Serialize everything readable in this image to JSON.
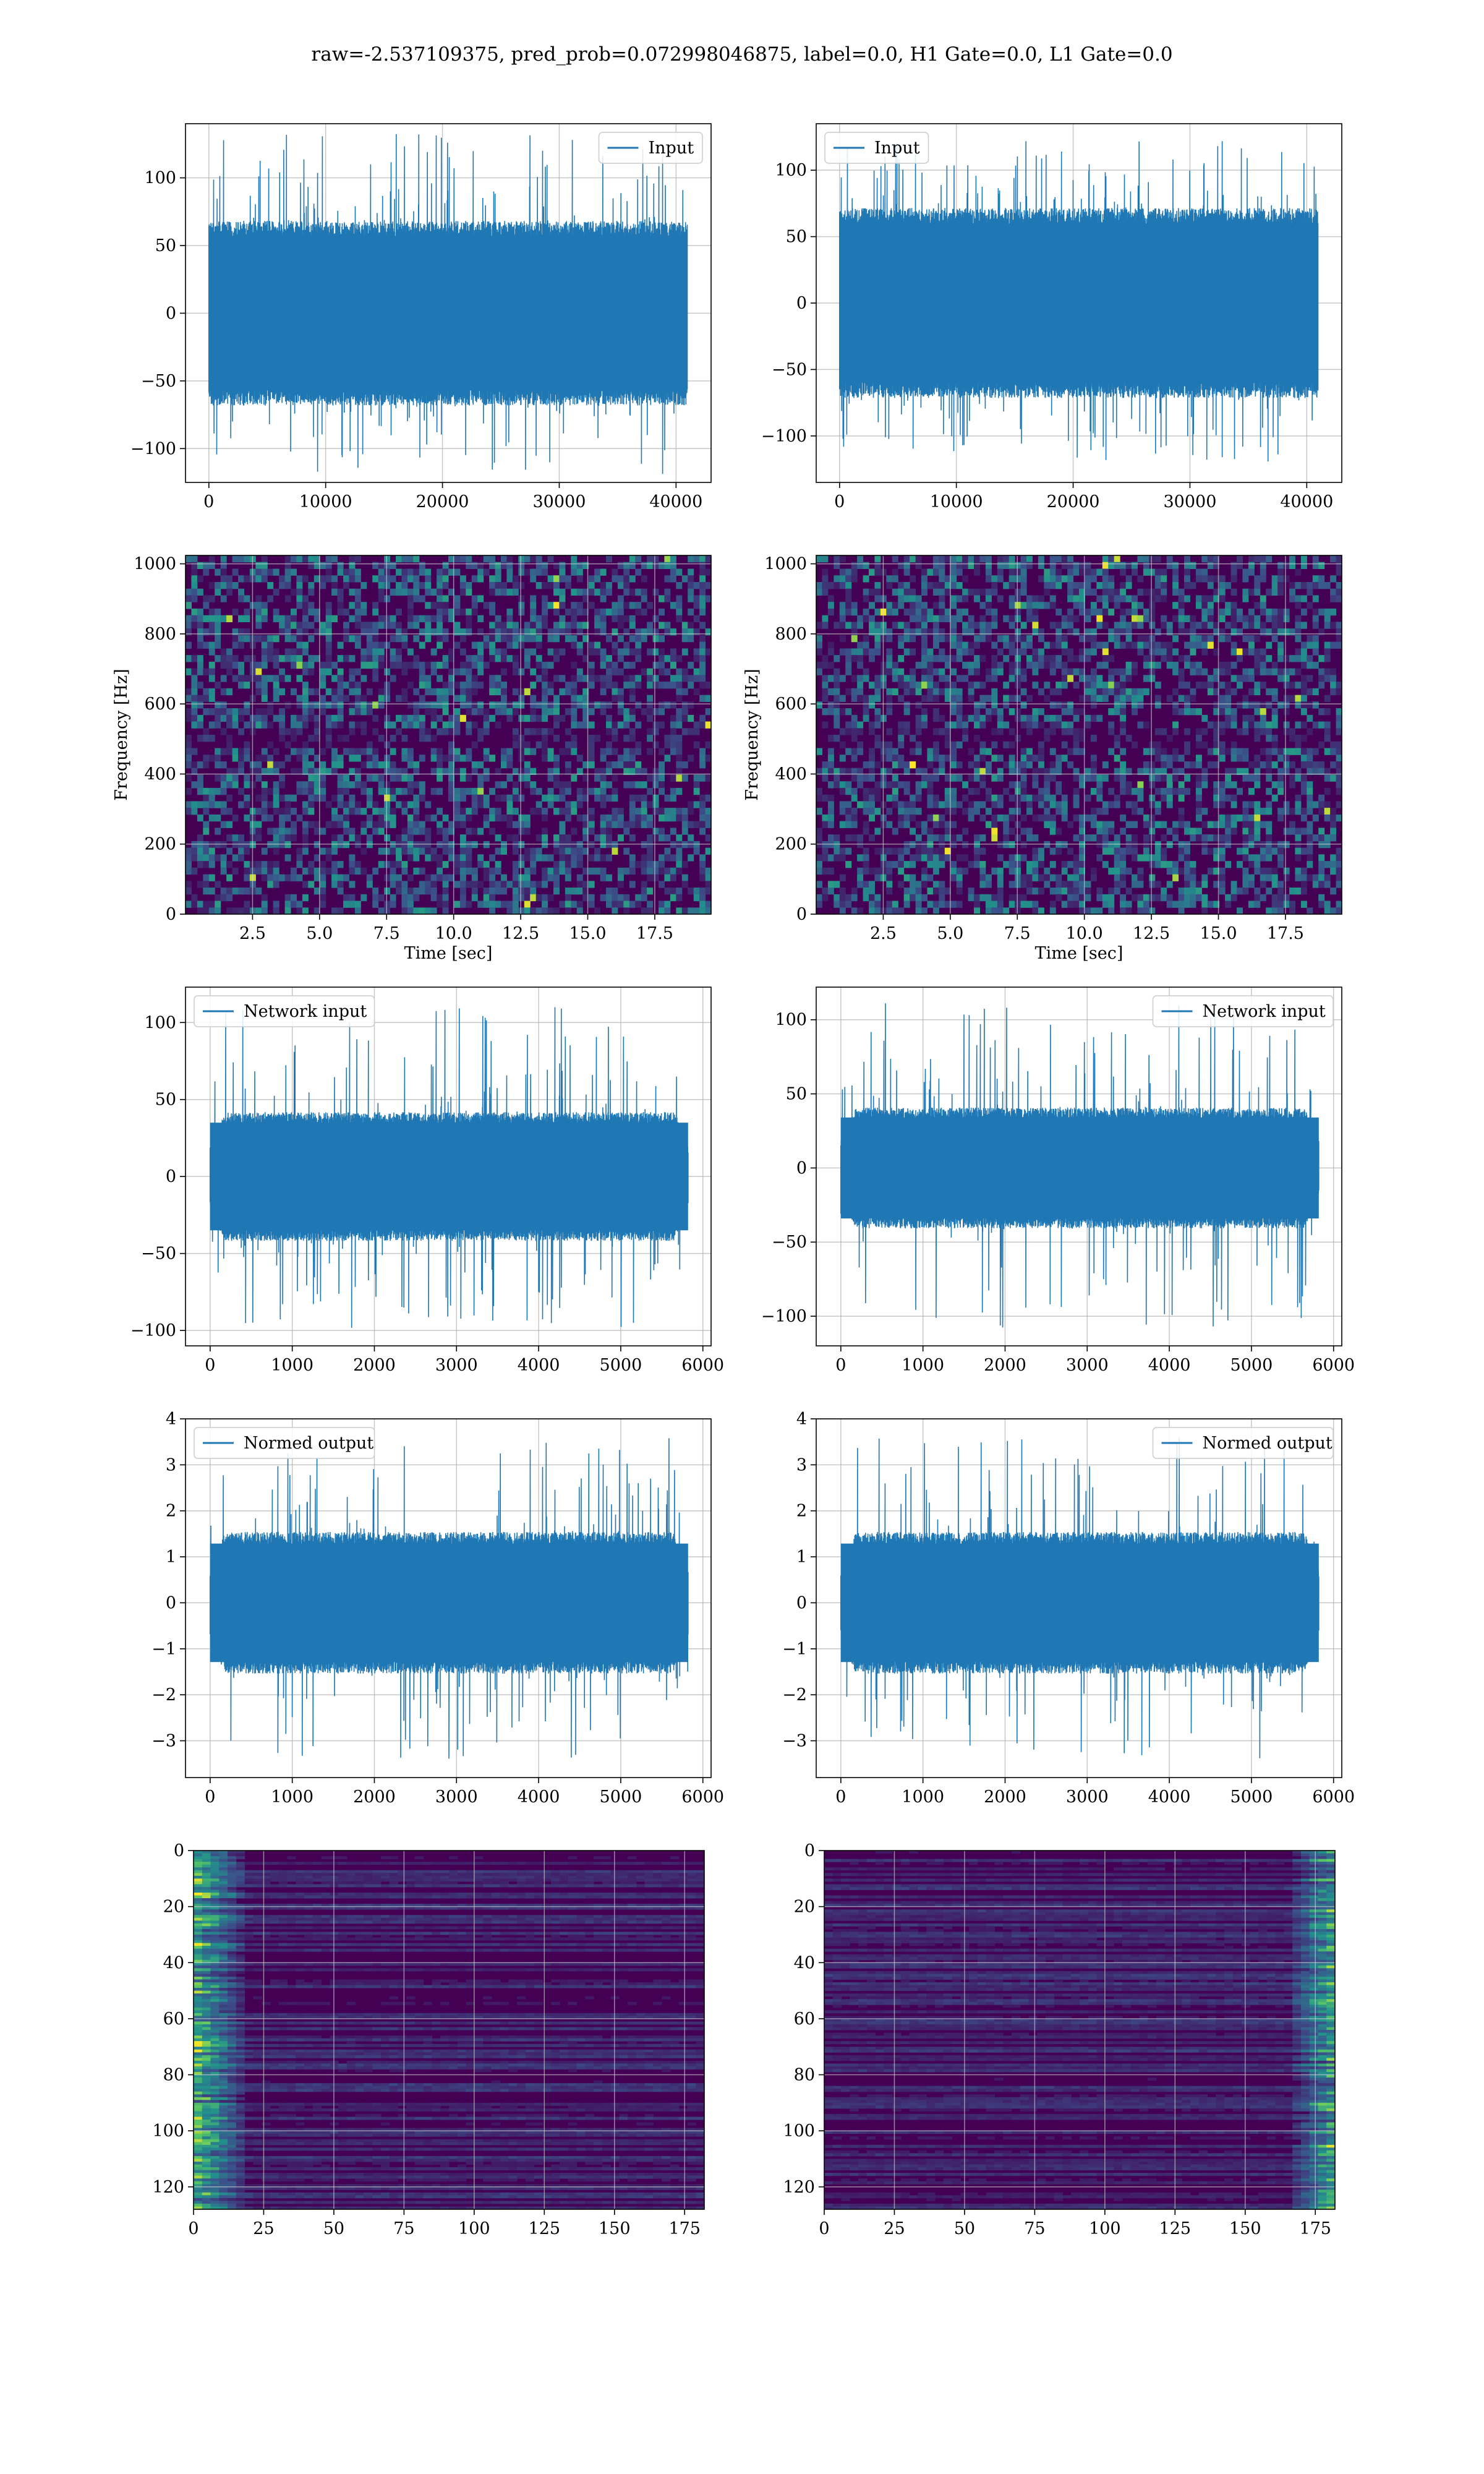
{
  "title": "raw=-2.537109375, pred_prob=0.072998046875, label=0.0, H1 Gate=0.0, L1 Gate=0.0",
  "colors": {
    "line": "#1f77b4",
    "grid": "#b0b0b0",
    "viridis_low": "#440154",
    "viridis_mid": "#21918c",
    "viridis_high": "#fde725"
  },
  "chart_data": [
    {
      "type": "line",
      "name": "panel-input-h1",
      "legend": [
        "Input"
      ],
      "legend_loc": "upper-right",
      "xlim": [
        -2000,
        43000
      ],
      "ylim": [
        -125,
        140
      ],
      "xticks": [
        0,
        10000,
        20000,
        30000,
        40000
      ],
      "xticklabels": [
        "0",
        "10000",
        "20000",
        "30000",
        "40000"
      ],
      "yticks": [
        -100,
        -50,
        0,
        50,
        100
      ],
      "yticklabels": [
        "−100",
        "−50",
        "0",
        "50",
        "100"
      ],
      "xlabel": "",
      "ylabel": "",
      "signal": {
        "x_start": 0,
        "x_end": 40960,
        "n": 1400,
        "core": 62,
        "max": 133,
        "min": -120,
        "taper": 0
      },
      "grid": true
    },
    {
      "type": "line",
      "name": "panel-input-l1",
      "legend": [
        "Input"
      ],
      "legend_loc": "upper-left",
      "xlim": [
        -2000,
        43000
      ],
      "ylim": [
        -135,
        135
      ],
      "xticks": [
        0,
        10000,
        20000,
        30000,
        40000
      ],
      "xticklabels": [
        "0",
        "10000",
        "20000",
        "30000",
        "40000"
      ],
      "yticks": [
        -100,
        -50,
        0,
        50,
        100
      ],
      "yticklabels": [
        "−100",
        "−50",
        "0",
        "50",
        "100"
      ],
      "xlabel": "",
      "ylabel": "",
      "signal": {
        "x_start": 0,
        "x_end": 40960,
        "n": 1400,
        "core": 65,
        "max": 122,
        "min": -120,
        "taper": 0
      },
      "grid": true
    },
    {
      "type": "heatmap",
      "name": "panel-spectrogram-h1",
      "xlim": [
        0,
        19.6
      ],
      "ylim": [
        0,
        1024
      ],
      "xticks": [
        2.5,
        5.0,
        7.5,
        10.0,
        12.5,
        15.0,
        17.5
      ],
      "xticklabels": [
        "2.5",
        "5.0",
        "7.5",
        "10.0",
        "12.5",
        "15.0",
        "17.5"
      ],
      "yticks": [
        0,
        200,
        400,
        600,
        800,
        1000
      ],
      "yticklabels": [
        "0",
        "200",
        "400",
        "600",
        "800",
        "1000"
      ],
      "xlabel": "Time [sec]",
      "ylabel": "Frequency [Hz]",
      "colormap": "viridis",
      "grid": true
    },
    {
      "type": "heatmap",
      "name": "panel-spectrogram-l1",
      "xlim": [
        0,
        19.6
      ],
      "ylim": [
        0,
        1024
      ],
      "xticks": [
        2.5,
        5.0,
        7.5,
        10.0,
        12.5,
        15.0,
        17.5
      ],
      "xticklabels": [
        "2.5",
        "5.0",
        "7.5",
        "10.0",
        "12.5",
        "15.0",
        "17.5"
      ],
      "yticks": [
        0,
        200,
        400,
        600,
        800,
        1000
      ],
      "yticklabels": [
        "0",
        "200",
        "400",
        "600",
        "800",
        "1000"
      ],
      "xlabel": "Time [sec]",
      "ylabel": "Frequency [Hz]",
      "colormap": "viridis",
      "grid": true
    },
    {
      "type": "line",
      "name": "panel-network-input-h1",
      "legend": [
        "Network input"
      ],
      "legend_loc": "upper-left",
      "xlim": [
        -300,
        6100
      ],
      "ylim": [
        -110,
        123
      ],
      "xticks": [
        0,
        1000,
        2000,
        3000,
        4000,
        5000,
        6000
      ],
      "xticklabels": [
        "0",
        "1000",
        "2000",
        "3000",
        "4000",
        "5000",
        "6000"
      ],
      "yticks": [
        -100,
        -50,
        0,
        50,
        100
      ],
      "yticklabels": [
        "−100",
        "−50",
        "0",
        "50",
        "100"
      ],
      "xlabel": "",
      "ylabel": "",
      "signal": {
        "x_start": 0,
        "x_end": 5820,
        "n": 1200,
        "core": 38,
        "max": 110,
        "min": -100,
        "taper": 0.03
      },
      "grid": true
    },
    {
      "type": "line",
      "name": "panel-network-input-l1",
      "legend": [
        "Network input"
      ],
      "legend_loc": "upper-right",
      "xlim": [
        -300,
        6100
      ],
      "ylim": [
        -120,
        122
      ],
      "xticks": [
        0,
        1000,
        2000,
        3000,
        4000,
        5000,
        6000
      ],
      "xticklabels": [
        "0",
        "1000",
        "2000",
        "3000",
        "4000",
        "5000",
        "6000"
      ],
      "yticks": [
        -100,
        -50,
        0,
        50,
        100
      ],
      "yticklabels": [
        "−100",
        "−50",
        "0",
        "50",
        "100"
      ],
      "xlabel": "",
      "ylabel": "",
      "signal": {
        "x_start": 0,
        "x_end": 5820,
        "n": 1200,
        "core": 37,
        "max": 112,
        "min": -108,
        "taper": 0.03
      },
      "grid": true
    },
    {
      "type": "line",
      "name": "panel-normed-output-h1",
      "legend": [
        "Normed output"
      ],
      "legend_loc": "upper-left",
      "xlim": [
        -300,
        6100
      ],
      "ylim": [
        -3.8,
        4.0
      ],
      "xticks": [
        0,
        1000,
        2000,
        3000,
        4000,
        5000,
        6000
      ],
      "xticklabels": [
        "0",
        "1000",
        "2000",
        "3000",
        "4000",
        "5000",
        "6000"
      ],
      "yticks": [
        -3,
        -2,
        -1,
        0,
        1,
        2,
        3,
        4
      ],
      "yticklabels": [
        "−3",
        "−2",
        "−1",
        "0",
        "1",
        "2",
        "3",
        "4"
      ],
      "xlabel": "",
      "ylabel": "",
      "signal": {
        "x_start": 0,
        "x_end": 5820,
        "n": 1200,
        "core": 1.4,
        "max": 3.6,
        "min": -3.4,
        "taper": 0.03
      },
      "grid": true
    },
    {
      "type": "line",
      "name": "panel-normed-output-l1",
      "legend": [
        "Normed output"
      ],
      "legend_loc": "upper-right",
      "xlim": [
        -300,
        6100
      ],
      "ylim": [
        -3.8,
        4.0
      ],
      "xticks": [
        0,
        1000,
        2000,
        3000,
        4000,
        5000,
        6000
      ],
      "xticklabels": [
        "0",
        "1000",
        "2000",
        "3000",
        "4000",
        "5000",
        "6000"
      ],
      "yticks": [
        -3,
        -2,
        -1,
        0,
        1,
        2,
        3,
        4
      ],
      "yticklabels": [
        "−3",
        "−2",
        "−1",
        "0",
        "1",
        "2",
        "3",
        "4"
      ],
      "xlabel": "",
      "ylabel": "",
      "signal": {
        "x_start": 0,
        "x_end": 5820,
        "n": 1200,
        "core": 1.4,
        "max": 3.6,
        "min": -3.4,
        "taper": 0.03
      },
      "grid": true
    },
    {
      "type": "heatmap",
      "name": "panel-feature-map-h1",
      "xlim": [
        0,
        182
      ],
      "ylim": [
        128,
        0
      ],
      "xticks": [
        0,
        25,
        50,
        75,
        100,
        125,
        150,
        175
      ],
      "xticklabels": [
        "0",
        "25",
        "50",
        "75",
        "100",
        "125",
        "150",
        "175"
      ],
      "yticks": [
        0,
        20,
        40,
        60,
        80,
        100,
        120
      ],
      "yticklabels": [
        "0",
        "20",
        "40",
        "60",
        "80",
        "100",
        "120"
      ],
      "xlabel": "",
      "ylabel": "",
      "colormap": "viridis",
      "hot_side": "left",
      "grid": true
    },
    {
      "type": "heatmap",
      "name": "panel-feature-map-l1",
      "xlim": [
        0,
        182
      ],
      "ylim": [
        128,
        0
      ],
      "xticks": [
        0,
        25,
        50,
        75,
        100,
        125,
        150,
        175
      ],
      "xticklabels": [
        "0",
        "25",
        "50",
        "75",
        "100",
        "125",
        "150",
        "175"
      ],
      "yticks": [
        0,
        20,
        40,
        60,
        80,
        100,
        120
      ],
      "yticklabels": [
        "0",
        "20",
        "40",
        "60",
        "80",
        "100",
        "120"
      ],
      "xlabel": "",
      "ylabel": "",
      "colormap": "viridis",
      "hot_side": "right",
      "grid": true
    }
  ]
}
